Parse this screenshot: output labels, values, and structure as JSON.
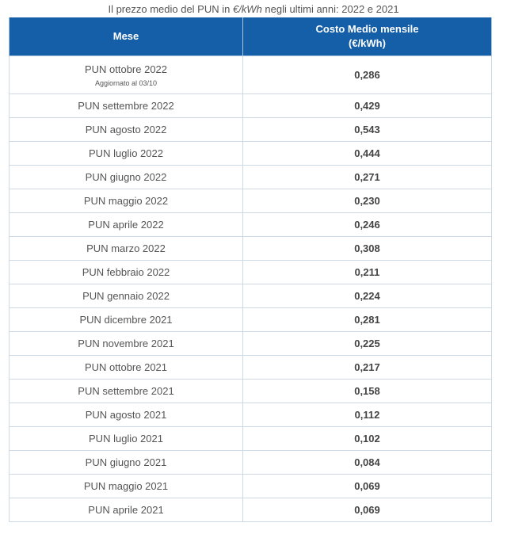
{
  "caption": {
    "prefix": "Il prezzo medio del PUN in ",
    "unit": "€/kWh",
    "suffix": " negli ultimi anni: 2022 e 2021"
  },
  "table": {
    "headers": {
      "month": "Mese",
      "cost_line1": "Costo Medio mensile",
      "cost_line2": "(€/kWh)"
    },
    "rows": [
      {
        "month": "PUN ottobre 2022",
        "note": "Aggiornato al 03/10",
        "value": "0,286"
      },
      {
        "month": "PUN settembre 2022",
        "value": "0,429"
      },
      {
        "month": "PUN agosto 2022",
        "value": "0,543"
      },
      {
        "month": "PUN luglio 2022",
        "value": "0,444"
      },
      {
        "month": "PUN giugno 2022",
        "value": "0,271"
      },
      {
        "month": "PUN maggio 2022",
        "value": "0,230"
      },
      {
        "month": "PUN aprile 2022",
        "value": "0,246"
      },
      {
        "month": "PUN marzo 2022",
        "value": "0,308"
      },
      {
        "month": "PUN febbraio 2022",
        "value": "0,211"
      },
      {
        "month": "PUN gennaio 2022",
        "value": "0,224"
      },
      {
        "month": "PUN dicembre 2021",
        "value": "0,281"
      },
      {
        "month": "PUN novembre 2021",
        "value": "0,225"
      },
      {
        "month": "PUN ottobre 2021",
        "value": "0,217"
      },
      {
        "month": "PUN settembre 2021",
        "value": "0,158"
      },
      {
        "month": "PUN agosto 2021",
        "value": "0,112"
      },
      {
        "month": "PUN luglio 2021",
        "value": "0,102"
      },
      {
        "month": "PUN giugno 2021",
        "value": "0,084"
      },
      {
        "month": "PUN maggio 2021",
        "value": "0,069"
      },
      {
        "month": "PUN aprile 2021",
        "value": "0,069"
      }
    ]
  },
  "colors": {
    "header_bg": "#155ea8",
    "header_text": "#ffffff",
    "border": "#cdd9e5"
  }
}
